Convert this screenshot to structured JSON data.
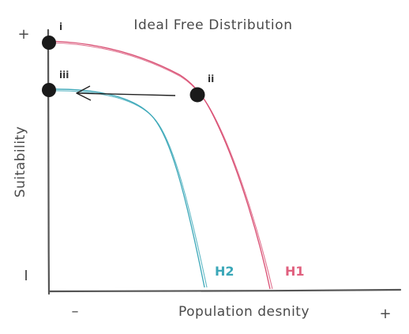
{
  "title": "Ideal Free Distribution",
  "y_axis_label": "Suitability",
  "x_axis_label": "Population desnity",
  "y_ticks": {
    "high": "+",
    "low": "I"
  },
  "x_ticks": {
    "low": "–",
    "high": "+"
  },
  "points": [
    {
      "label": "i"
    },
    {
      "label": "ii"
    },
    {
      "label": "iii"
    }
  ],
  "curves": [
    {
      "label": "H1",
      "color": "#d94f73"
    },
    {
      "label": "H2",
      "color": "#3aa7b8"
    }
  ],
  "colors": {
    "axis": "#555555",
    "point": "#1a1a1a",
    "arrow": "#222222"
  }
}
